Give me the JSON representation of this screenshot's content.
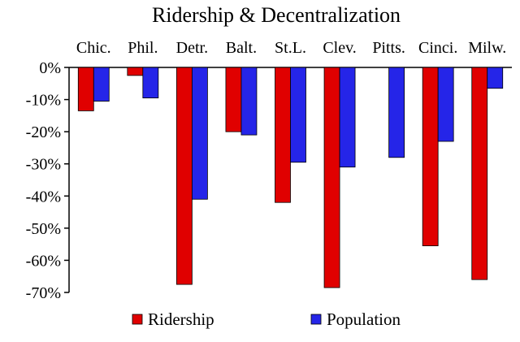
{
  "chart_data": {
    "type": "bar",
    "title": "Ridership & Decentralization",
    "categories": [
      "Chic.",
      "Phil.",
      "Detr.",
      "Balt.",
      "St.L.",
      "Clev.",
      "Pitts.",
      "Cinci.",
      "Milw."
    ],
    "series": [
      {
        "name": "Ridership",
        "color": "#e00000",
        "values": [
          -13.5,
          -2.5,
          -67.5,
          -20,
          -42,
          -68.5,
          null,
          -55.5,
          -66
        ]
      },
      {
        "name": "Population",
        "color": "#2525e8",
        "values": [
          -10.5,
          -9.5,
          -41,
          -21,
          -29.5,
          -31,
          -28,
          -23,
          -6.5
        ]
      }
    ],
    "ylim": [
      -70,
      0
    ],
    "yticks": [
      0,
      -10,
      -20,
      -30,
      -40,
      -50,
      -60,
      -70
    ],
    "ytick_labels": [
      "0%",
      "-10%",
      "-20%",
      "-30%",
      "-40%",
      "-50%",
      "-60%",
      "-70%"
    ],
    "grid": false,
    "category_labels_position": "top",
    "legend_position": "bottom"
  }
}
